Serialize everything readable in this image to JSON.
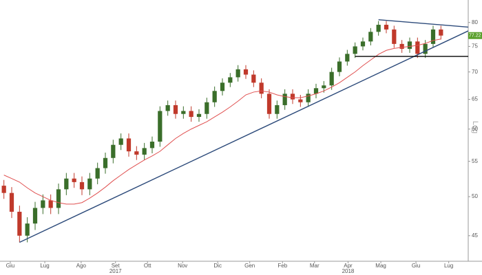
{
  "chart_data": {
    "type": "candlestick",
    "axis_label": "Log",
    "log_scale": true,
    "xlim": [
      -0.5,
      59.5
    ],
    "ylim": [
      42,
      85
    ],
    "yticks": [
      45,
      50,
      55,
      60,
      65,
      70,
      75,
      80
    ],
    "xticks": [
      {
        "value": 0.82,
        "label": "Giu"
      },
      {
        "value": 5.24,
        "label": "Lug"
      },
      {
        "value": 9.9,
        "label": "Ago"
      },
      {
        "value": 14.3,
        "label": "Set"
      },
      {
        "value": 18.4,
        "label": "Ott"
      },
      {
        "value": 22.9,
        "label": "Nov"
      },
      {
        "value": 27.4,
        "label": "Dic"
      },
      {
        "value": 31.5,
        "label": "Gen"
      },
      {
        "value": 35.7,
        "label": "Feb"
      },
      {
        "value": 39.8,
        "label": "Mar"
      },
      {
        "value": 44.1,
        "label": "Apr"
      },
      {
        "value": 48.3,
        "label": "Mag"
      },
      {
        "value": 52.8,
        "label": "Giu"
      },
      {
        "value": 57.0,
        "label": "Lug"
      }
    ],
    "year_labels": [
      {
        "value": 14.3,
        "label": "2017"
      },
      {
        "value": 44.1,
        "label": "2018"
      }
    ],
    "up_color": "#3a6e2a",
    "down_color": "#c0392b",
    "open": [
      51.5,
      50.5,
      48,
      45,
      46.5,
      48.5,
      49.5,
      48.5,
      51,
      52.5,
      52,
      51,
      52.5,
      54,
      55.5,
      57.5,
      58.5,
      56.5,
      56,
      57,
      58,
      63,
      64,
      62.5,
      63,
      62,
      62.5,
      64.5,
      66.5,
      68,
      69,
      70.5,
      69.5,
      68,
      66,
      62.5,
      64,
      66,
      65,
      64.5,
      66,
      67,
      67.5,
      70,
      72,
      73.5,
      75,
      76,
      78,
      79.5,
      78.5,
      75.5,
      74.5,
      76,
      73.5,
      75.5,
      78.5
    ],
    "high": [
      52.3,
      51.3,
      48.8,
      47.3,
      49.3,
      50.3,
      50.3,
      51.8,
      53.3,
      53.3,
      52.8,
      53.3,
      54.8,
      56.3,
      58.3,
      59.3,
      59.3,
      57.3,
      57.8,
      58.8,
      63.8,
      64.8,
      64.8,
      63.8,
      63.8,
      63.3,
      65.3,
      67.3,
      68.8,
      69.8,
      71.3,
      71.3,
      70.3,
      68.8,
      66.8,
      64.8,
      66.8,
      66.8,
      65.8,
      66.8,
      67.8,
      68.3,
      70.8,
      72.8,
      74.3,
      75.8,
      76.8,
      78.8,
      80.3,
      80.3,
      79.3,
      76.3,
      76.8,
      76.8,
      76.3,
      79.3,
      79.3
    ],
    "low": [
      49.7,
      47.2,
      44.2,
      44.2,
      45.7,
      47.7,
      47.7,
      47.7,
      50.2,
      51.2,
      50.2,
      50.2,
      51.7,
      53.2,
      54.7,
      56.7,
      55.7,
      55.2,
      55.2,
      56.2,
      57.2,
      62.2,
      61.7,
      61.7,
      61.2,
      61.2,
      61.7,
      63.7,
      65.7,
      67.2,
      68.2,
      68.7,
      67.2,
      65.2,
      61.7,
      61.7,
      63.2,
      64.2,
      63.7,
      63.7,
      65.2,
      66.2,
      66.7,
      69.2,
      71.2,
      72.7,
      74.2,
      75.2,
      77.2,
      77.7,
      74.7,
      73.7,
      73.7,
      72.7,
      72.7,
      74.7,
      76.4
    ],
    "close": [
      50.5,
      48,
      45,
      46.5,
      48.5,
      49.5,
      48.5,
      51,
      52.5,
      52,
      51,
      52.5,
      54,
      55.5,
      57.5,
      58.5,
      56.5,
      56,
      57,
      58,
      63,
      64,
      62.5,
      63,
      62,
      62.5,
      64.5,
      66.5,
      68,
      69,
      70.5,
      69.5,
      68,
      66,
      62.5,
      64,
      66,
      65,
      64.5,
      66,
      67,
      67.5,
      70,
      72,
      73.5,
      75,
      76,
      78,
      79.5,
      78.5,
      75.5,
      74.5,
      76,
      73.5,
      75.5,
      78.5,
      77.22
    ],
    "moving_average": {
      "color": "#e05050",
      "values": [
        53,
        52.5,
        52,
        51.2,
        50.5,
        50,
        49.5,
        49.2,
        49,
        49,
        49.2,
        49.8,
        50.5,
        51.3,
        52.2,
        53,
        53.8,
        54.5,
        55.2,
        55.8,
        56.5,
        57.5,
        58.5,
        59.3,
        60,
        60.6,
        61.2,
        62,
        62.8,
        63.7,
        64.7,
        65.8,
        66.3,
        66.5,
        66.3,
        65.8,
        65.5,
        65.3,
        65.3,
        65.6,
        66,
        66.5,
        67.2,
        68,
        69,
        70,
        71.2,
        72.3,
        73.4,
        74.2,
        74.6,
        74.8,
        75,
        75.2,
        75.6,
        76.2,
        76.5
      ]
    },
    "trendlines": [
      {
        "color": "#2c4a7a",
        "x": [
          2,
          59.5
        ],
        "y": [
          44.2,
          78.2
        ]
      },
      {
        "color": "#2c4a7a",
        "x": [
          48,
          59.5
        ],
        "y": [
          80.6,
          79
        ]
      },
      {
        "color": "#000000",
        "x": [
          45,
          59.5
        ],
        "y": [
          73,
          73
        ]
      }
    ],
    "last_price": 77.22,
    "last_price_color": "#5aa02c"
  }
}
